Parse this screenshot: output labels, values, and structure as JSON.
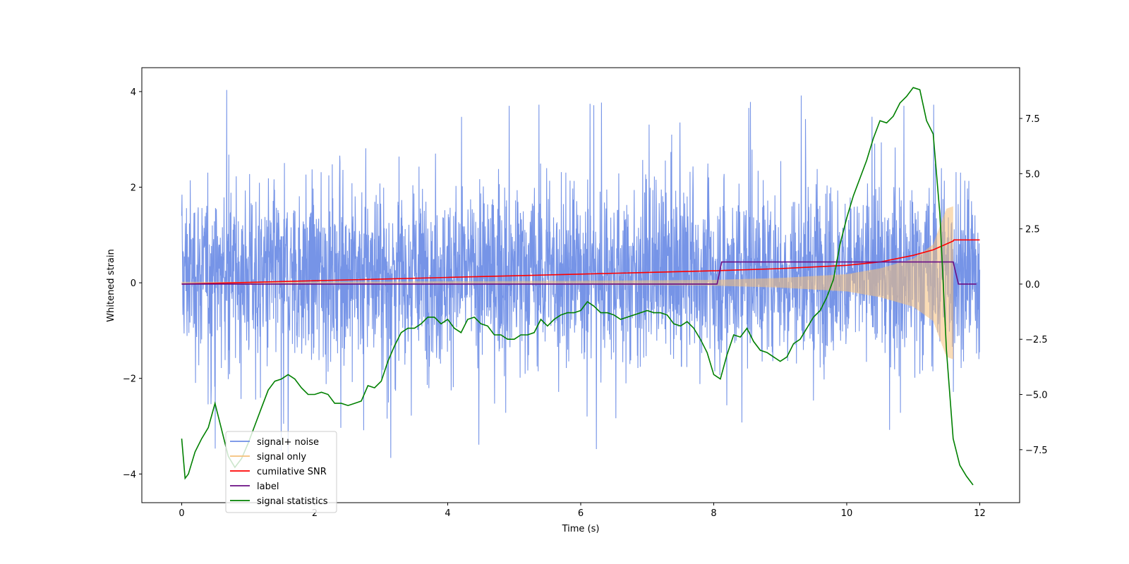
{
  "chart_data": {
    "type": "line",
    "xlabel": "Time (s)",
    "ylabel": "Whitened strain",
    "y2label": "",
    "xlim": [
      -0.6,
      12.6
    ],
    "ylim": [
      -4.6,
      4.5
    ],
    "y2lim": [
      -9.9,
      9.8
    ],
    "xticks": [
      0,
      2,
      4,
      6,
      8,
      10,
      12
    ],
    "yticks": [
      -4,
      -2,
      0,
      2,
      4
    ],
    "y2ticks": [
      -7.5,
      -5.0,
      -2.5,
      0.0,
      2.5,
      5.0,
      7.5
    ],
    "xtick_labels": [
      "0",
      "2",
      "4",
      "6",
      "8",
      "10",
      "12"
    ],
    "ytick_labels": [
      "−4",
      "−2",
      "0",
      "2",
      "4"
    ],
    "y2tick_labels": [
      "−7.5",
      "−5.0",
      "−2.5",
      "0.0",
      "2.5",
      "5.0",
      "7.5"
    ],
    "legend_position": "lower-left",
    "series": [
      {
        "name": "signal+ noise",
        "color": "#6f8ee6",
        "axis": "left",
        "kind": "noise-band",
        "x_range": [
          0,
          12
        ],
        "typical_range": [
          -1.5,
          1.9
        ],
        "extremes": [
          -4.15,
          4.1
        ]
      },
      {
        "name": "signal only",
        "color": "#f5c07a",
        "axis": "left",
        "kind": "chirp",
        "x_range": [
          0,
          11.6
        ],
        "envelope": {
          "x": [
            0,
            2,
            4,
            6,
            8,
            9,
            10,
            10.5,
            11,
            11.3,
            11.5,
            11.6
          ],
          "y": [
            0.02,
            0.02,
            0.03,
            0.04,
            0.06,
            0.1,
            0.18,
            0.3,
            0.5,
            0.8,
            1.55,
            1.6
          ]
        }
      },
      {
        "name": "cumilative SNR",
        "color": "#ff0000",
        "axis": "right",
        "x": [
          0,
          2,
          4,
          6,
          8,
          9,
          10,
          10.5,
          11,
          11.3,
          11.6,
          11.61,
          12
        ],
        "y": [
          0,
          0.15,
          0.3,
          0.45,
          0.6,
          0.7,
          0.85,
          1.0,
          1.3,
          1.55,
          1.95,
          2.0,
          2.0
        ]
      },
      {
        "name": "label",
        "color": "#6a0d83",
        "axis": "right",
        "x": [
          0,
          8.05,
          8.12,
          11.6,
          11.68,
          11.95
        ],
        "y": [
          0,
          0,
          1.0,
          1.0,
          0,
          0
        ]
      },
      {
        "name": "signal statistics",
        "color": "#008000",
        "axis": "right",
        "x": [
          0,
          0.05,
          0.1,
          0.2,
          0.3,
          0.4,
          0.5,
          0.6,
          0.7,
          0.8,
          0.9,
          1.0,
          1.1,
          1.2,
          1.3,
          1.4,
          1.5,
          1.6,
          1.7,
          1.8,
          1.9,
          2.0,
          2.1,
          2.2,
          2.3,
          2.4,
          2.5,
          2.6,
          2.7,
          2.8,
          2.9,
          3.0,
          3.1,
          3.2,
          3.3,
          3.4,
          3.5,
          3.6,
          3.7,
          3.8,
          3.9,
          4.0,
          4.1,
          4.2,
          4.3,
          4.4,
          4.5,
          4.6,
          4.7,
          4.8,
          4.9,
          5.0,
          5.1,
          5.2,
          5.3,
          5.4,
          5.5,
          5.6,
          5.7,
          5.8,
          5.9,
          6.0,
          6.1,
          6.2,
          6.3,
          6.4,
          6.5,
          6.6,
          6.7,
          6.8,
          6.9,
          7.0,
          7.1,
          7.2,
          7.3,
          7.4,
          7.5,
          7.6,
          7.7,
          7.8,
          7.9,
          8.0,
          8.1,
          8.2,
          8.3,
          8.4,
          8.5,
          8.6,
          8.7,
          8.8,
          8.9,
          9.0,
          9.1,
          9.2,
          9.3,
          9.4,
          9.5,
          9.6,
          9.7,
          9.8,
          9.9,
          10.0,
          10.1,
          10.2,
          10.3,
          10.4,
          10.5,
          10.6,
          10.7,
          10.8,
          10.9,
          11.0,
          11.1,
          11.2,
          11.3,
          11.4,
          11.5,
          11.6,
          11.7,
          11.8,
          11.9
        ],
        "y": [
          -7.0,
          -8.8,
          -8.6,
          -7.6,
          -7.0,
          -6.5,
          -5.4,
          -6.6,
          -7.8,
          -8.3,
          -7.9,
          -7.2,
          -6.4,
          -5.6,
          -4.8,
          -4.4,
          -4.3,
          -4.1,
          -4.3,
          -4.7,
          -5.0,
          -5.0,
          -4.9,
          -5.0,
          -5.4,
          -5.4,
          -5.5,
          -5.4,
          -5.3,
          -4.6,
          -4.7,
          -4.4,
          -3.5,
          -2.8,
          -2.2,
          -2.0,
          -2.0,
          -1.8,
          -1.5,
          -1.5,
          -1.8,
          -1.6,
          -2.0,
          -2.2,
          -1.6,
          -1.5,
          -1.8,
          -1.9,
          -2.3,
          -2.3,
          -2.5,
          -2.5,
          -2.3,
          -2.3,
          -2.2,
          -1.6,
          -1.9,
          -1.6,
          -1.4,
          -1.3,
          -1.3,
          -1.2,
          -0.8,
          -1.0,
          -1.3,
          -1.3,
          -1.4,
          -1.6,
          -1.5,
          -1.4,
          -1.3,
          -1.2,
          -1.3,
          -1.3,
          -1.4,
          -1.8,
          -1.9,
          -1.7,
          -2.0,
          -2.5,
          -3.1,
          -4.1,
          -4.3,
          -3.2,
          -2.3,
          -2.4,
          -2.0,
          -2.6,
          -3.0,
          -3.1,
          -3.3,
          -3.5,
          -3.3,
          -2.7,
          -2.5,
          -2.0,
          -1.5,
          -1.2,
          -0.6,
          0.2,
          1.8,
          3.0,
          4.0,
          4.8,
          5.6,
          6.6,
          7.4,
          7.3,
          7.6,
          8.2,
          8.5,
          8.9,
          8.8,
          7.4,
          6.8,
          3.2,
          -3.0,
          -7.0,
          -8.2,
          -8.7,
          -9.1
        ]
      }
    ]
  }
}
